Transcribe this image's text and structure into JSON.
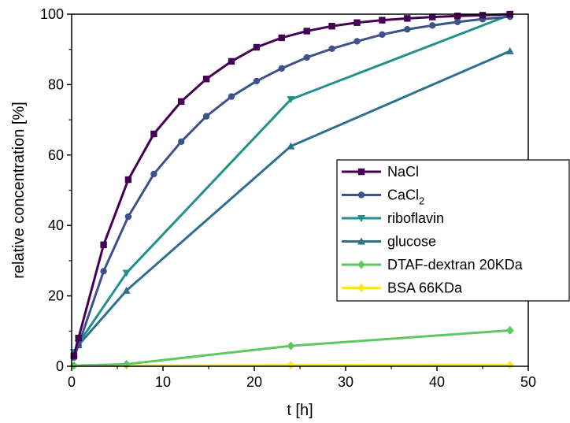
{
  "chart_data": {
    "type": "line",
    "xlabel": "t [h]",
    "ylabel": "relative concentration  [%]",
    "xlim": [
      0,
      50
    ],
    "ylim": [
      0,
      100
    ],
    "xticks": [
      "0",
      "10",
      "20",
      "30",
      "40",
      "50"
    ],
    "yticks": [
      "0",
      "20",
      "40",
      "60",
      "80",
      "100"
    ],
    "grid": false,
    "legend_position": "center-right",
    "series": [
      {
        "name": "NaCl",
        "color": "#440154",
        "marker": "square",
        "x": [
          0.25,
          0.75,
          3.5,
          6.2,
          9,
          12,
          14.75,
          17.5,
          20.25,
          23,
          25.75,
          28.5,
          31.25,
          34,
          36.75,
          39.5,
          42.25,
          45,
          48
        ],
        "y": [
          3,
          8,
          34.5,
          53,
          66,
          75.2,
          81.6,
          86.6,
          90.6,
          93.3,
          95.2,
          96.6,
          97.6,
          98.3,
          98.8,
          99.2,
          99.5,
          99.7,
          100
        ]
      },
      {
        "name": "CaCl",
        "name_subscript": "2",
        "color": "#3b528b",
        "marker": "circle",
        "x": [
          0.25,
          0.75,
          3.5,
          6.2,
          9,
          12,
          14.75,
          17.5,
          20.25,
          23,
          25.75,
          28.5,
          31.25,
          34,
          36.75,
          39.5,
          42.25,
          45,
          48
        ],
        "y": [
          2.5,
          6,
          27,
          42.5,
          54.6,
          63.8,
          71,
          76.6,
          81,
          84.6,
          87.7,
          90.2,
          92.3,
          94.2,
          95.7,
          96.8,
          97.8,
          98.6,
          99.3
        ]
      },
      {
        "name": "riboflavin",
        "color": "#21918c",
        "marker": "triangle-down",
        "x": [
          0.25,
          0.75,
          6,
          24,
          48
        ],
        "y": [
          4,
          6.5,
          26.5,
          75.8,
          99.8
        ]
      },
      {
        "name": "glucose",
        "color": "#2c728e",
        "marker": "triangle-up",
        "x": [
          0.25,
          0.75,
          6,
          24,
          48
        ],
        "y": [
          3.5,
          6,
          21.5,
          62.5,
          89.5
        ]
      },
      {
        "name": "DTAF-dextran 20KDa",
        "color": "#5ec962",
        "marker": "diamond",
        "x": [
          0.25,
          6,
          24,
          48
        ],
        "y": [
          0.2,
          0.6,
          5.8,
          10.2
        ]
      },
      {
        "name": "BSA 66KDa",
        "color": "#fde725",
        "marker": "diamond",
        "x": [
          0.25,
          6,
          24,
          48
        ],
        "y": [
          0.2,
          0.2,
          0.3,
          0.4
        ]
      }
    ]
  }
}
